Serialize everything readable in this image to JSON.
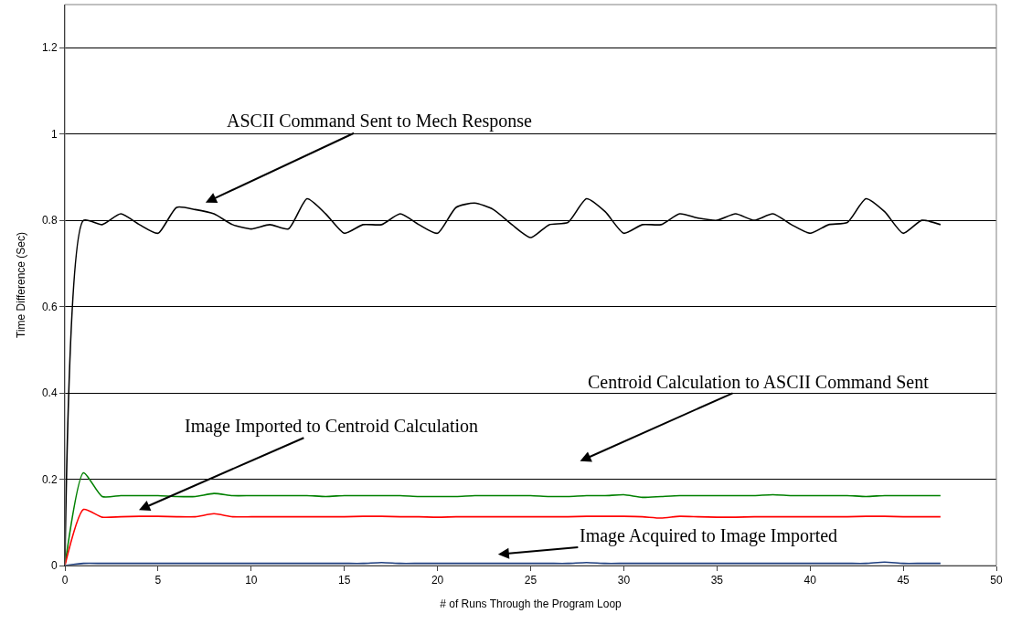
{
  "chart_data": {
    "type": "line",
    "xlabel": "# of Runs Through the Program Loop",
    "ylabel": "Time Difference (Sec)",
    "x": [
      0,
      1,
      2,
      3,
      4,
      5,
      6,
      7,
      8,
      9,
      10,
      11,
      12,
      13,
      14,
      15,
      16,
      17,
      18,
      19,
      20,
      21,
      22,
      23,
      24,
      25,
      26,
      27,
      28,
      29,
      30,
      31,
      32,
      33,
      34,
      35,
      36,
      37,
      38,
      39,
      40,
      41,
      42,
      43,
      44,
      45,
      46,
      47
    ],
    "series": [
      {
        "color": "#000000",
        "values": [
          0,
          0.8,
          0.79,
          0.815,
          0.79,
          0.77,
          0.83,
          0.825,
          0.815,
          0.79,
          0.78,
          0.79,
          0.78,
          0.85,
          0.815,
          0.77,
          0.79,
          0.79,
          0.815,
          0.79,
          0.77,
          0.83,
          0.84,
          0.825,
          0.79,
          0.76,
          0.79,
          0.795,
          0.85,
          0.82,
          0.77,
          0.79,
          0.79,
          0.815,
          0.805,
          0.8,
          0.815,
          0.8,
          0.815,
          0.79,
          0.77,
          0.79,
          0.795,
          0.85,
          0.82,
          0.77,
          0.8,
          0.79
        ]
      },
      {
        "color": "#008000",
        "values": [
          0,
          0.215,
          0.16,
          0.162,
          0.162,
          0.162,
          0.16,
          0.16,
          0.167,
          0.162,
          0.162,
          0.162,
          0.162,
          0.162,
          0.16,
          0.162,
          0.162,
          0.162,
          0.162,
          0.16,
          0.16,
          0.16,
          0.162,
          0.162,
          0.162,
          0.162,
          0.16,
          0.16,
          0.162,
          0.162,
          0.164,
          0.158,
          0.16,
          0.162,
          0.162,
          0.162,
          0.162,
          0.162,
          0.164,
          0.162,
          0.162,
          0.162,
          0.162,
          0.16,
          0.162,
          0.162,
          0.162,
          0.162
        ]
      },
      {
        "color": "#ff0000",
        "values": [
          0,
          0.13,
          0.112,
          0.113,
          0.114,
          0.114,
          0.113,
          0.113,
          0.12,
          0.113,
          0.113,
          0.113,
          0.113,
          0.113,
          0.113,
          0.113,
          0.114,
          0.114,
          0.113,
          0.113,
          0.112,
          0.113,
          0.113,
          0.113,
          0.113,
          0.113,
          0.113,
          0.113,
          0.114,
          0.114,
          0.114,
          0.113,
          0.11,
          0.114,
          0.113,
          0.112,
          0.112,
          0.113,
          0.113,
          0.113,
          0.113,
          0.113,
          0.113,
          0.114,
          0.114,
          0.113,
          0.113,
          0.113
        ]
      },
      {
        "color": "#1f3f7f",
        "values": [
          0,
          0.005,
          0.005,
          0.005,
          0.005,
          0.005,
          0.005,
          0.005,
          0.005,
          0.005,
          0.005,
          0.005,
          0.005,
          0.005,
          0.005,
          0.005,
          0.005,
          0.007,
          0.005,
          0.005,
          0.005,
          0.005,
          0.005,
          0.005,
          0.005,
          0.005,
          0.005,
          0.005,
          0.007,
          0.005,
          0.005,
          0.005,
          0.005,
          0.005,
          0.005,
          0.005,
          0.005,
          0.005,
          0.005,
          0.005,
          0.005,
          0.005,
          0.005,
          0.005,
          0.008,
          0.005,
          0.005,
          0.005
        ]
      }
    ],
    "xlim": [
      0,
      50
    ],
    "xticks": [
      0,
      5,
      10,
      15,
      20,
      25,
      30,
      35,
      40,
      45,
      50
    ],
    "ylim": [
      0,
      1.3
    ],
    "yticks": [
      0,
      0.2,
      0.4,
      0.6,
      0.8,
      1,
      1.2
    ],
    "grid": "y",
    "marker": "none",
    "line_style": "solid",
    "annotations": [
      "ASCII Command Sent to Mech Response",
      "Centroid Calculation to ASCII Command Sent",
      "Image Imported to Centroid Calculation",
      "Image Acquired to Image Imported"
    ]
  }
}
